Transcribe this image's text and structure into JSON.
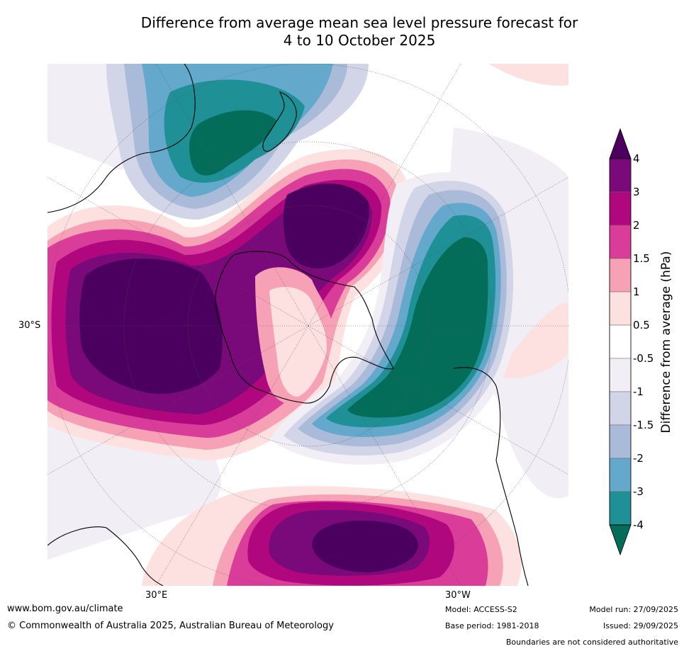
{
  "title": {
    "line1": "Difference from average mean sea level pressure forecast for",
    "line2": "4 to 10 October 2025"
  },
  "colorbar": {
    "axis_label": "Difference from average (hPa)",
    "tick_labels": [
      "4",
      "3",
      "2",
      "1.5",
      "1",
      "0.5",
      "-0.5",
      "-1",
      "-1.5",
      "-2",
      "-3",
      "-4"
    ],
    "colors": {
      "above_4": "#4b0060",
      "3_to_4": "#7a0a7a",
      "2_to_3": "#b0077f",
      "1.5_to_2": "#d93c99",
      "1_to_1.5": "#f7a1b6",
      "0.5_to_1": "#fde0e0",
      "-0.5_to_0.5": "#ffffff",
      "-1_to_-0.5": "#f2eef5",
      "-1.5_to_-1": "#d2d4e8",
      "-2_to_-1.5": "#a9bbd8",
      "-3_to_-2": "#64a8cc",
      "-4_to_-3": "#1e9096",
      "below_-4": "#046d5a"
    }
  },
  "map_labels": {
    "lat_30s": "30°S",
    "lon_30e": "30°E",
    "lon_30w": "30°W"
  },
  "footer": {
    "url": "www.bom.gov.au/climate",
    "copyright": "© Commonwealth of Australia 2025, Australian Bureau of Meteorology",
    "model": "Model: ACCESS-S2",
    "base_period": "Base period: 1981-2018",
    "model_run": "Model run: 27/09/2025",
    "issued": "Issued: 29/09/2025",
    "disclaimer": "Boundaries are not considered authoritative"
  }
}
